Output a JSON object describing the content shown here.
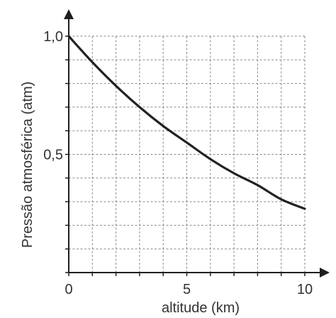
{
  "chart_data": {
    "type": "line",
    "title": "",
    "xlabel": "altitude (km)",
    "ylabel": "Pressão atmosférica (atm)",
    "xlim": [
      0,
      10
    ],
    "ylim": [
      0,
      1.0
    ],
    "x_ticks": [
      0,
      5,
      10
    ],
    "x_tick_labels": [
      "0",
      "5",
      "10"
    ],
    "y_ticks": [
      0.5,
      1.0
    ],
    "y_tick_labels": [
      "0,5",
      "1,0"
    ],
    "grid": true,
    "grid_step_x": 1,
    "grid_step_y": 0.1,
    "series": [
      {
        "x": [
          0,
          1,
          2,
          3,
          4,
          5,
          6,
          7,
          8,
          9,
          10
        ],
        "y": [
          1.0,
          0.89,
          0.79,
          0.7,
          0.62,
          0.55,
          0.48,
          0.42,
          0.37,
          0.31,
          0.27
        ],
        "color": "#222222"
      }
    ]
  }
}
